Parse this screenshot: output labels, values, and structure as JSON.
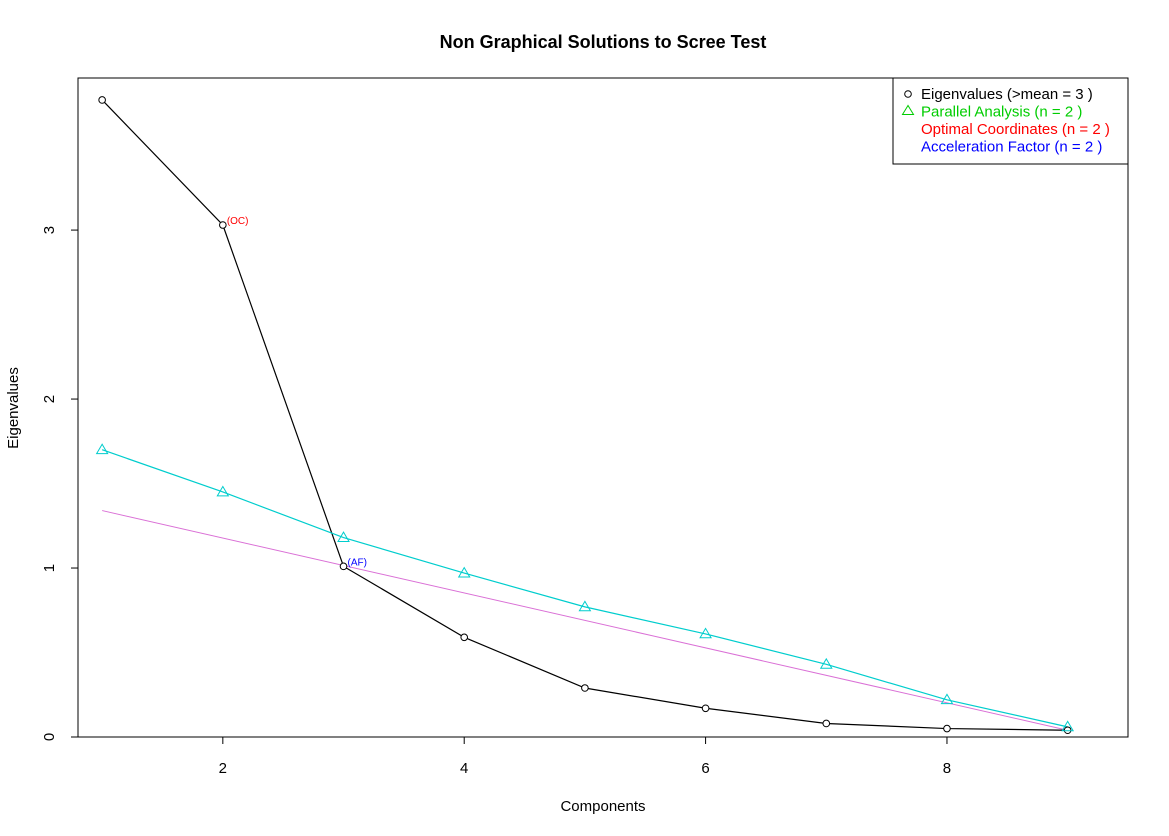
{
  "chart_data": {
    "type": "line",
    "title": "Non Graphical Solutions to Scree Test",
    "xlabel": "Components",
    "ylabel": "Eigenvalues",
    "xlim": [
      0.8,
      9.5
    ],
    "ylim": [
      0,
      3.9
    ],
    "x_ticks": [
      2,
      4,
      6,
      8
    ],
    "y_ticks": [
      0,
      1,
      2,
      3
    ],
    "x": [
      1,
      2,
      3,
      4,
      5,
      6,
      7,
      8,
      9
    ],
    "series": [
      {
        "name": "Eigenvalues (>mean  =  3 )",
        "values": [
          3.77,
          3.03,
          1.01,
          0.59,
          0.29,
          0.17,
          0.08,
          0.05,
          0.04
        ],
        "color": "#000000",
        "marker": "circle"
      },
      {
        "name": "Parallel Analysis (n =  2 )",
        "values": [
          1.7,
          1.45,
          1.18,
          0.97,
          0.77,
          0.61,
          0.43,
          0.22,
          0.06
        ],
        "color": "#00CDCD",
        "marker": "triangle"
      }
    ],
    "optimal_coordinates_line": {
      "x": [
        1,
        9
      ],
      "values": [
        1.34,
        0.04
      ],
      "color": "#DA70D6"
    },
    "legend": {
      "position": "top-right",
      "entries": [
        {
          "text": "Eigenvalues (>mean  =  3 )",
          "color": "#000000",
          "marker": "circle"
        },
        {
          "text": "Parallel Analysis (n =  2 )",
          "color": "#00CD00",
          "marker": "triangle"
        },
        {
          "text": "Optimal Coordinates (n =  2 )",
          "color": "#FF0000",
          "marker": "none"
        },
        {
          "text": "Acceleration Factor (n =  2 )",
          "color": "#0000FF",
          "marker": "none"
        }
      ]
    },
    "annotations": [
      {
        "text": "(OC)",
        "x": 2,
        "y": 3.03,
        "color": "#FF0000"
      },
      {
        "text": "(AF)",
        "x": 3,
        "y": 1.01,
        "color": "#0000FF"
      }
    ],
    "grid": false
  }
}
